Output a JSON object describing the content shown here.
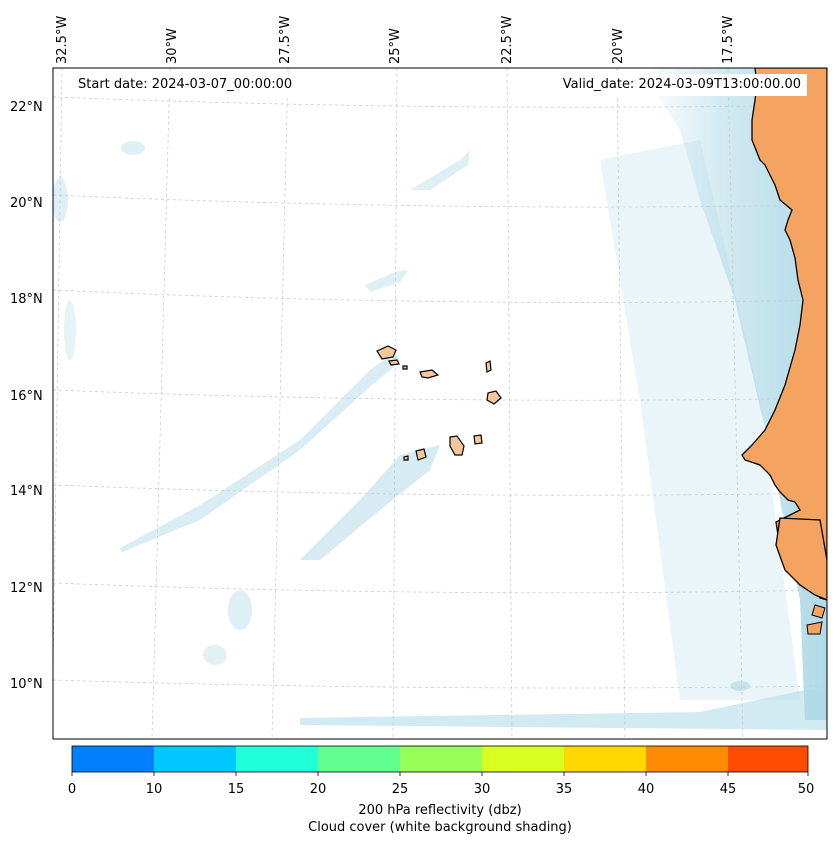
{
  "header": {
    "start_label": "Start date: 2024-03-07_00:00:00",
    "valid_label": "Valid_date: 2024-03-09T13:00:00.00"
  },
  "axes": {
    "lon_labels": [
      "32.5°W",
      "30°W",
      "27.5°W",
      "25°W",
      "22.5°W",
      "20°W",
      "17.5°W"
    ],
    "lat_labels": [
      "22°N",
      "20°N",
      "18°N",
      "16°N",
      "14°N",
      "12°N",
      "10°N"
    ]
  },
  "colorbar": {
    "ticks": [
      "0",
      "10",
      "15",
      "20",
      "25",
      "30",
      "35",
      "40",
      "45",
      "50"
    ],
    "colors": [
      "#0080ff",
      "#00c8ff",
      "#20ffd8",
      "#60ff90",
      "#98ff58",
      "#d8ff20",
      "#ffd800",
      "#ff8c00",
      "#ff4c00"
    ],
    "label_line1": "200 hPa reflectivity (dbz)",
    "label_line2": "Cloud cover (white background shading)"
  },
  "colors": {
    "land": "#f4a460",
    "cloud": "#add8e6",
    "grid": "#cccccc"
  }
}
